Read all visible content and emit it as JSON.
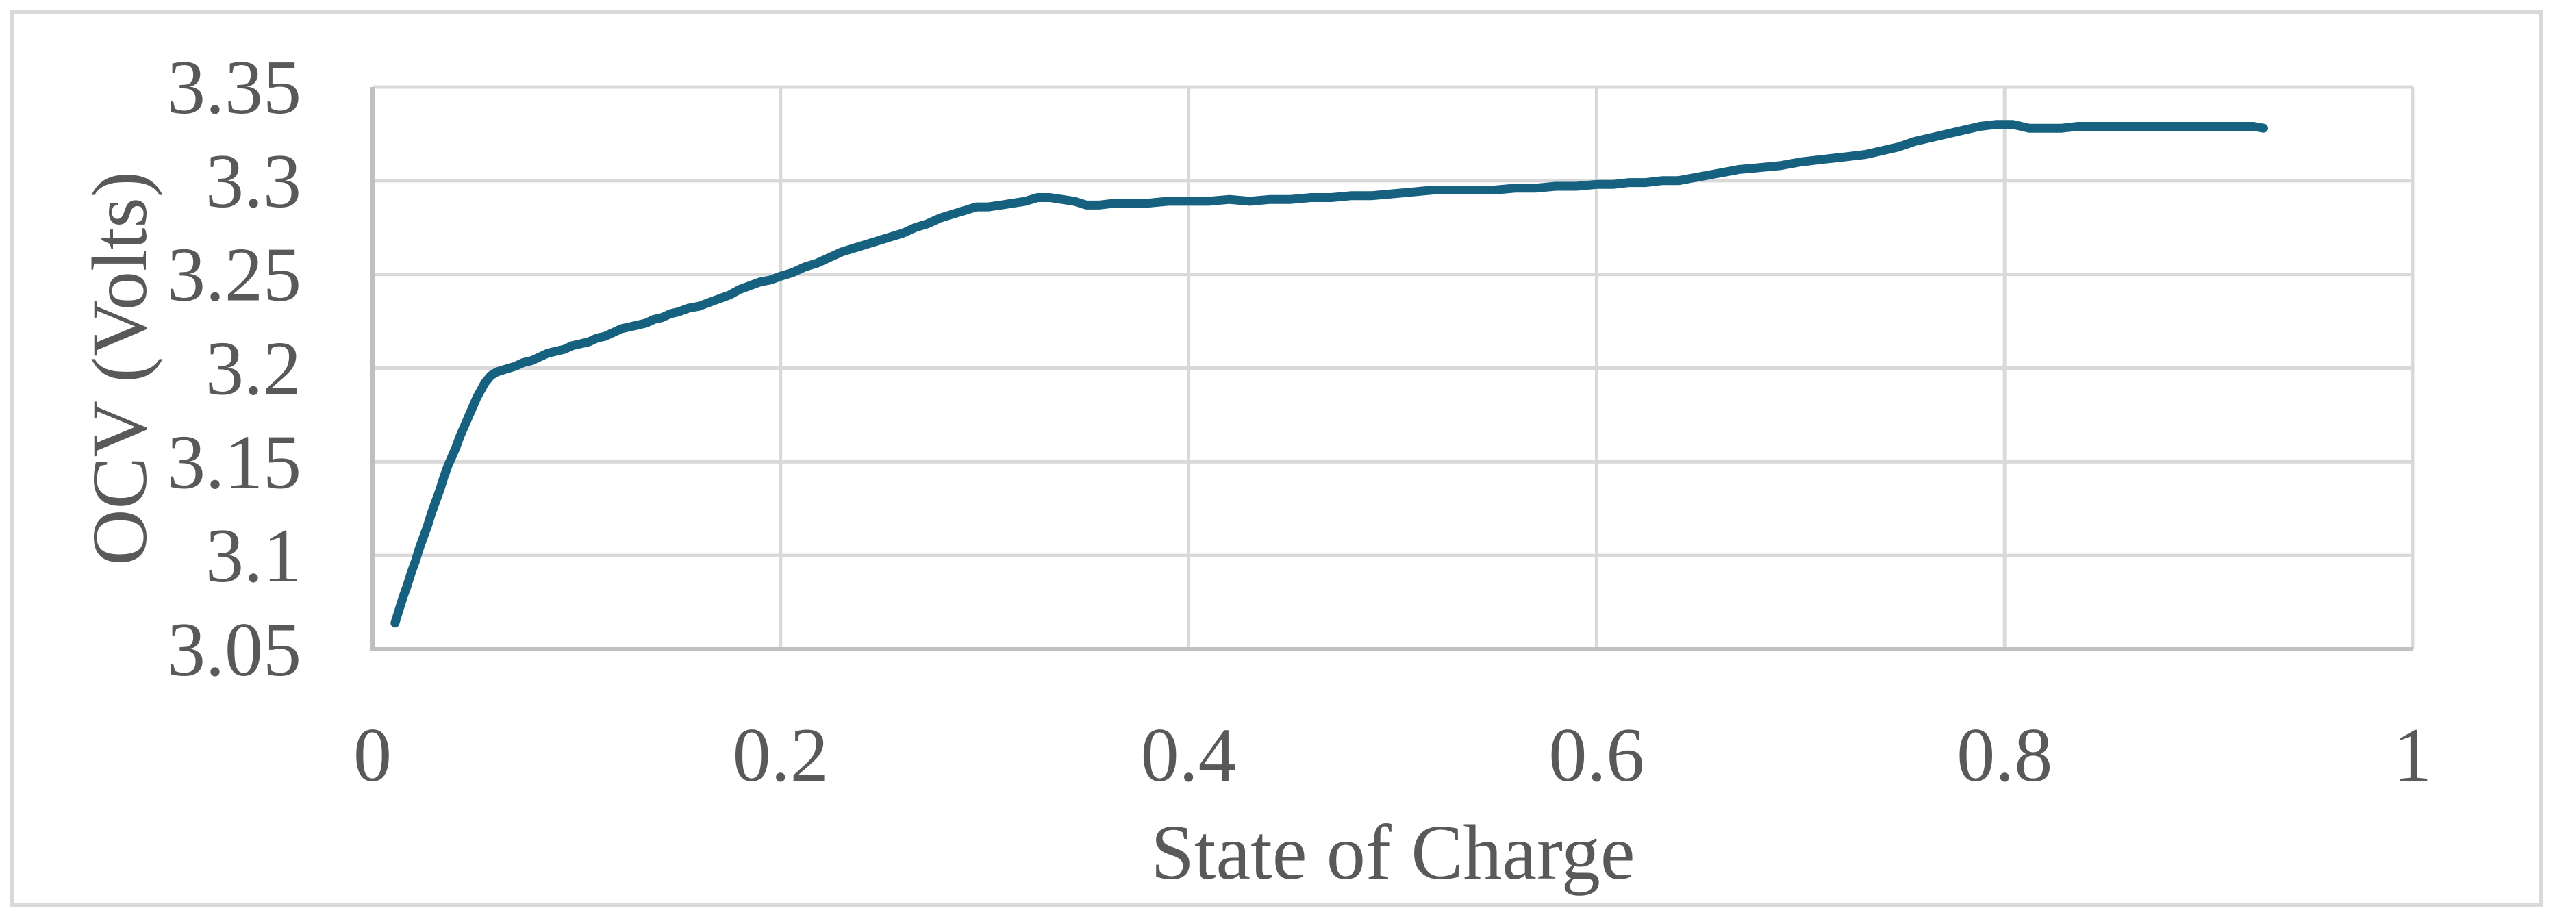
{
  "figure": {
    "background_color": "#FFFFFF",
    "border_color": "#D9D9D9"
  },
  "axes": {
    "x_title": "State of Charge",
    "y_title": "OCV (Volts)",
    "label_color": "#595959",
    "gridline_color": "#D9D9D9",
    "axis_line_color": "#BFBFBF"
  },
  "chart_data": {
    "type": "line",
    "title": "",
    "xlabel": "State of Charge",
    "ylabel": "OCV (Volts)",
    "xlim": [
      0,
      1
    ],
    "ylim": [
      3.05,
      3.35
    ],
    "grid": true,
    "legend": false,
    "x_tick_labels": [
      "0",
      "0.2",
      "0.4",
      "0.6",
      "0.8",
      "1"
    ],
    "x_tick_values": [
      0,
      0.2,
      0.4,
      0.6,
      0.8,
      1
    ],
    "y_tick_labels": [
      "3.05",
      "3.1",
      "3.15",
      "3.2",
      "3.25",
      "3.3",
      "3.35"
    ],
    "y_tick_values": [
      3.05,
      3.1,
      3.15,
      3.2,
      3.25,
      3.3,
      3.35
    ],
    "series": [
      {
        "name": "OCV curve",
        "color": "#16617F",
        "points": [
          [
            0.011,
            3.064
          ],
          [
            0.013,
            3.071
          ],
          [
            0.015,
            3.078
          ],
          [
            0.017,
            3.084
          ],
          [
            0.019,
            3.091
          ],
          [
            0.021,
            3.097
          ],
          [
            0.023,
            3.104
          ],
          [
            0.025,
            3.11
          ],
          [
            0.027,
            3.116
          ],
          [
            0.029,
            3.123
          ],
          [
            0.031,
            3.129
          ],
          [
            0.033,
            3.135
          ],
          [
            0.035,
            3.142
          ],
          [
            0.037,
            3.148
          ],
          [
            0.039,
            3.153
          ],
          [
            0.041,
            3.158
          ],
          [
            0.043,
            3.164
          ],
          [
            0.045,
            3.169
          ],
          [
            0.047,
            3.174
          ],
          [
            0.049,
            3.179
          ],
          [
            0.051,
            3.184
          ],
          [
            0.053,
            3.188
          ],
          [
            0.055,
            3.192
          ],
          [
            0.058,
            3.196
          ],
          [
            0.061,
            3.198
          ],
          [
            0.064,
            3.199
          ],
          [
            0.067,
            3.2
          ],
          [
            0.07,
            3.201
          ],
          [
            0.074,
            3.203
          ],
          [
            0.078,
            3.204
          ],
          [
            0.082,
            3.206
          ],
          [
            0.086,
            3.208
          ],
          [
            0.09,
            3.209
          ],
          [
            0.094,
            3.21
          ],
          [
            0.098,
            3.212
          ],
          [
            0.102,
            3.213
          ],
          [
            0.106,
            3.214
          ],
          [
            0.11,
            3.216
          ],
          [
            0.114,
            3.217
          ],
          [
            0.118,
            3.219
          ],
          [
            0.122,
            3.221
          ],
          [
            0.126,
            3.222
          ],
          [
            0.13,
            3.223
          ],
          [
            0.134,
            3.224
          ],
          [
            0.138,
            3.226
          ],
          [
            0.142,
            3.227
          ],
          [
            0.146,
            3.229
          ],
          [
            0.15,
            3.23
          ],
          [
            0.155,
            3.232
          ],
          [
            0.16,
            3.233
          ],
          [
            0.165,
            3.235
          ],
          [
            0.17,
            3.237
          ],
          [
            0.175,
            3.239
          ],
          [
            0.18,
            3.242
          ],
          [
            0.185,
            3.244
          ],
          [
            0.19,
            3.246
          ],
          [
            0.195,
            3.247
          ],
          [
            0.2,
            3.249
          ],
          [
            0.206,
            3.251
          ],
          [
            0.212,
            3.254
          ],
          [
            0.218,
            3.256
          ],
          [
            0.224,
            3.259
          ],
          [
            0.23,
            3.262
          ],
          [
            0.236,
            3.264
          ],
          [
            0.242,
            3.266
          ],
          [
            0.248,
            3.268
          ],
          [
            0.254,
            3.27
          ],
          [
            0.26,
            3.272
          ],
          [
            0.266,
            3.275
          ],
          [
            0.272,
            3.277
          ],
          [
            0.278,
            3.28
          ],
          [
            0.284,
            3.282
          ],
          [
            0.29,
            3.284
          ],
          [
            0.296,
            3.286
          ],
          [
            0.302,
            3.286
          ],
          [
            0.308,
            3.287
          ],
          [
            0.314,
            3.288
          ],
          [
            0.32,
            3.289
          ],
          [
            0.326,
            3.291
          ],
          [
            0.332,
            3.291
          ],
          [
            0.338,
            3.29
          ],
          [
            0.344,
            3.289
          ],
          [
            0.35,
            3.287
          ],
          [
            0.356,
            3.287
          ],
          [
            0.364,
            3.288
          ],
          [
            0.372,
            3.288
          ],
          [
            0.38,
            3.288
          ],
          [
            0.39,
            3.289
          ],
          [
            0.4,
            3.289
          ],
          [
            0.41,
            3.289
          ],
          [
            0.42,
            3.29
          ],
          [
            0.43,
            3.289
          ],
          [
            0.44,
            3.29
          ],
          [
            0.45,
            3.29
          ],
          [
            0.46,
            3.291
          ],
          [
            0.47,
            3.291
          ],
          [
            0.48,
            3.292
          ],
          [
            0.49,
            3.292
          ],
          [
            0.5,
            3.293
          ],
          [
            0.51,
            3.294
          ],
          [
            0.52,
            3.295
          ],
          [
            0.53,
            3.295
          ],
          [
            0.54,
            3.295
          ],
          [
            0.55,
            3.295
          ],
          [
            0.56,
            3.296
          ],
          [
            0.57,
            3.296
          ],
          [
            0.58,
            3.297
          ],
          [
            0.59,
            3.297
          ],
          [
            0.6,
            3.298
          ],
          [
            0.608,
            3.298
          ],
          [
            0.616,
            3.299
          ],
          [
            0.624,
            3.299
          ],
          [
            0.632,
            3.3
          ],
          [
            0.64,
            3.3
          ],
          [
            0.65,
            3.302
          ],
          [
            0.66,
            3.304
          ],
          [
            0.67,
            3.306
          ],
          [
            0.68,
            3.307
          ],
          [
            0.69,
            3.308
          ],
          [
            0.7,
            3.31
          ],
          [
            0.708,
            3.311
          ],
          [
            0.716,
            3.312
          ],
          [
            0.724,
            3.313
          ],
          [
            0.732,
            3.314
          ],
          [
            0.74,
            3.316
          ],
          [
            0.748,
            3.318
          ],
          [
            0.756,
            3.321
          ],
          [
            0.764,
            3.323
          ],
          [
            0.772,
            3.325
          ],
          [
            0.78,
            3.327
          ],
          [
            0.788,
            3.329
          ],
          [
            0.796,
            3.33
          ],
          [
            0.804,
            3.33
          ],
          [
            0.812,
            3.328
          ],
          [
            0.82,
            3.328
          ],
          [
            0.828,
            3.328
          ],
          [
            0.836,
            3.329
          ],
          [
            0.845,
            3.329
          ],
          [
            0.855,
            3.329
          ],
          [
            0.865,
            3.329
          ],
          [
            0.875,
            3.329
          ],
          [
            0.885,
            3.329
          ],
          [
            0.895,
            3.329
          ],
          [
            0.905,
            3.329
          ],
          [
            0.915,
            3.329
          ],
          [
            0.922,
            3.329
          ],
          [
            0.927,
            3.328
          ]
        ]
      }
    ]
  }
}
